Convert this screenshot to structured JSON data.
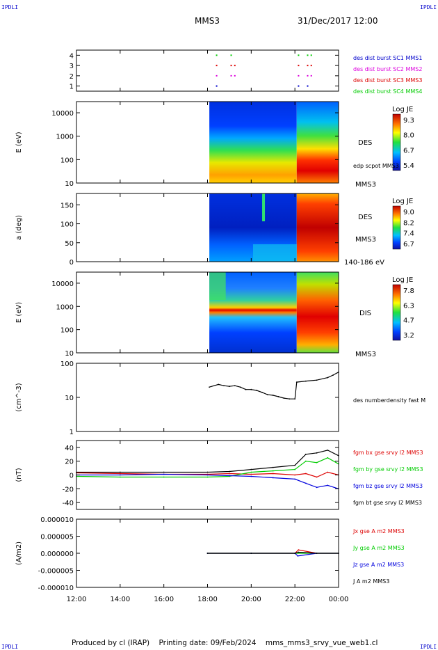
{
  "header": {
    "corner_tl": "IPDLI",
    "corner_tr": "IPDLI",
    "corner_bl": "IPDLI",
    "corner_br": "IPDLI",
    "spacecraft": "MMS3",
    "datetime": "31/Dec/2017 12:00"
  },
  "footer": {
    "produced_by": "Produced by cl (IRAP)",
    "printing_date": "Printing date: 09/Feb/2024",
    "filename": "mms_mms3_srvy_vue_web1.cl"
  },
  "colors": {
    "sc1": "#0000cc",
    "sc2": "#dd00dd",
    "sc3": "#dd0000",
    "sc4": "#00cc00",
    "bx": "#dd0000",
    "by": "#00cc00",
    "bz": "#0000dd",
    "bt": "#000000"
  },
  "chart_data": [
    {
      "type": "scatter",
      "panel": "burst-availability",
      "yticks": [
        "4",
        "3",
        "2",
        "1"
      ],
      "ylim": [
        0.5,
        4.5
      ],
      "legend": [
        "des dist burst SC1 MMS1",
        "des dist burst SC2 MMS2",
        "des dist burst SC3 MMS3",
        "des dist burst SC4 MMS4"
      ],
      "series": [
        {
          "name": "des dist burst SC1 MMS1",
          "color": "#0000cc",
          "y": 1,
          "x": [
            "18:25",
            "22:10",
            "22:35"
          ]
        },
        {
          "name": "des dist burst SC2 MMS2",
          "color": "#dd00dd",
          "y": 2,
          "x": [
            "18:25",
            "19:05",
            "19:15",
            "22:10",
            "22:35",
            "22:45"
          ]
        },
        {
          "name": "des dist burst SC3 MMS3",
          "color": "#dd0000",
          "y": 3,
          "x": [
            "18:25",
            "19:05",
            "19:15",
            "22:10",
            "22:35",
            "22:45"
          ]
        },
        {
          "name": "des dist burst SC4 MMS4",
          "color": "#00cc00",
          "y": 4,
          "x": [
            "18:25",
            "19:05",
            "22:10",
            "22:35",
            "22:45"
          ]
        }
      ]
    },
    {
      "type": "heatmap",
      "panel": "des-energy",
      "ylabel": "E (eV)",
      "yscale": "log",
      "ylim": [
        10,
        30000
      ],
      "yticks": [
        "10000",
        "1000",
        "100",
        "10"
      ],
      "data_start": "18:05",
      "colorbar": {
        "label": "Log JE",
        "ticks": [
          "9.3",
          "8.0",
          "6.7",
          "5.4"
        ]
      },
      "side_labels": [
        "DES",
        "edp scpot MMS3",
        "MMS3"
      ]
    },
    {
      "type": "heatmap",
      "panel": "des-pitch",
      "ylabel": "a (deg)",
      "ylim": [
        0,
        180
      ],
      "yticks": [
        "150",
        "100",
        "50",
        "0"
      ],
      "data_start": "18:05",
      "colorbar": {
        "label": "Log JE",
        "ticks": [
          "9.0",
          "8.2",
          "7.4",
          "6.7"
        ]
      },
      "side_labels": [
        "DES",
        "MMS3",
        "140-186 eV"
      ]
    },
    {
      "type": "heatmap",
      "panel": "dis-energy",
      "ylabel": "E (eV)",
      "yscale": "log",
      "ylim": [
        10,
        30000
      ],
      "yticks": [
        "10000",
        "1000",
        "100",
        "10"
      ],
      "data_start": "18:05",
      "colorbar": {
        "label": "Log JE",
        "ticks": [
          "7.8",
          "6.3",
          "4.7",
          "3.2"
        ]
      },
      "side_labels": [
        "DIS",
        "MMS3"
      ]
    },
    {
      "type": "line",
      "panel": "density",
      "ylabel": "(cm^-3)",
      "yscale": "log",
      "ylim": [
        1,
        100
      ],
      "yticks": [
        "100",
        "10",
        "1"
      ],
      "series": [
        {
          "name": "des numberdensity fast M",
          "color": "#000000",
          "x": [
            "18:05",
            "18:30",
            "18:45",
            "19:00",
            "19:15",
            "19:30",
            "19:45",
            "20:00",
            "20:15",
            "20:30",
            "20:45",
            "21:00",
            "21:15",
            "21:30",
            "21:45",
            "22:00",
            "22:05",
            "22:30",
            "23:00",
            "23:30",
            "23:45",
            "00:00"
          ],
          "y": [
            20,
            24,
            22,
            21,
            22,
            20,
            17,
            17,
            16,
            14,
            12,
            11.5,
            10.5,
            9.5,
            9,
            9,
            28,
            30,
            32,
            38,
            45,
            55
          ]
        }
      ]
    },
    {
      "type": "line",
      "panel": "magnetic-field",
      "ylabel": "(nT)",
      "ylim": [
        -50,
        50
      ],
      "yticks": [
        "40",
        "20",
        "0",
        "-20",
        "-40"
      ],
      "series": [
        {
          "name": "fgm bx gse srvy l2 MMS3",
          "color": "#dd0000",
          "x": [
            "12:00",
            "14:00",
            "16:00",
            "18:00",
            "19:00",
            "20:00",
            "21:00",
            "22:00",
            "22:30",
            "23:00",
            "23:30",
            "00:00"
          ],
          "y": [
            3,
            2,
            1,
            1,
            2,
            1,
            2,
            0,
            2,
            -3,
            4,
            0
          ]
        },
        {
          "name": "fgm by gse srvy l2 MMS3",
          "color": "#00cc00",
          "x": [
            "12:00",
            "14:00",
            "16:00",
            "18:00",
            "19:00",
            "20:00",
            "21:00",
            "22:00",
            "22:30",
            "23:00",
            "23:30",
            "00:00"
          ],
          "y": [
            -2,
            -3,
            -3,
            -3,
            -2,
            4,
            6,
            8,
            20,
            18,
            25,
            16
          ]
        },
        {
          "name": "fgm bz gse srvy l2 MMS3",
          "color": "#0000dd",
          "x": [
            "12:00",
            "14:00",
            "16:00",
            "18:00",
            "19:00",
            "20:00",
            "21:00",
            "22:00",
            "22:30",
            "23:00",
            "23:30",
            "00:00"
          ],
          "y": [
            0,
            0,
            1,
            0,
            -1,
            -2,
            -4,
            -6,
            -12,
            -18,
            -15,
            -20
          ]
        },
        {
          "name": "fgm bt gse srvy l2 MMS3",
          "color": "#000000",
          "x": [
            "12:00",
            "14:00",
            "16:00",
            "18:00",
            "19:00",
            "20:00",
            "21:00",
            "22:00",
            "22:30",
            "23:00",
            "23:30",
            "00:00"
          ],
          "y": [
            4,
            4,
            4,
            4,
            5,
            8,
            11,
            14,
            30,
            32,
            36,
            28
          ]
        }
      ]
    },
    {
      "type": "line",
      "panel": "current-density",
      "ylabel": "(A/m2)",
      "ylim": [
        -1e-05,
        1e-05
      ],
      "yticks": [
        "0.000010",
        "0.000005",
        "0.000000",
        "-0.000005",
        "-0.000010"
      ],
      "series": [
        {
          "name": "Jx gse A m2 MMS3",
          "color": "#dd0000",
          "x": [
            "18:00",
            "20:00",
            "22:00",
            "22:10",
            "23:00",
            "00:00"
          ],
          "y": [
            0,
            0,
            0,
            1e-06,
            0,
            0
          ]
        },
        {
          "name": "Jy gse A m2 MMS3",
          "color": "#00cc00",
          "x": [
            "18:00",
            "20:00",
            "22:00",
            "23:00",
            "00:00"
          ],
          "y": [
            0,
            0,
            0,
            0,
            0
          ]
        },
        {
          "name": "Jz gse A m2 MMS3",
          "color": "#0000dd",
          "x": [
            "18:00",
            "20:00",
            "22:00",
            "22:08",
            "23:00",
            "00:00"
          ],
          "y": [
            0,
            0,
            0,
            -8e-07,
            0,
            0
          ]
        },
        {
          "name": "J A m2 MMS3",
          "color": "#000000",
          "x": [
            "18:00",
            "20:00",
            "22:00",
            "22:10",
            "23:00",
            "00:00"
          ],
          "y": [
            0,
            0,
            0,
            3e-07,
            0,
            0
          ]
        }
      ]
    },
    {
      "type": "axis",
      "panel": "time-axis",
      "xticks": [
        "12:00",
        "14:00",
        "16:00",
        "18:00",
        "20:00",
        "22:00",
        "00:00"
      ]
    }
  ]
}
